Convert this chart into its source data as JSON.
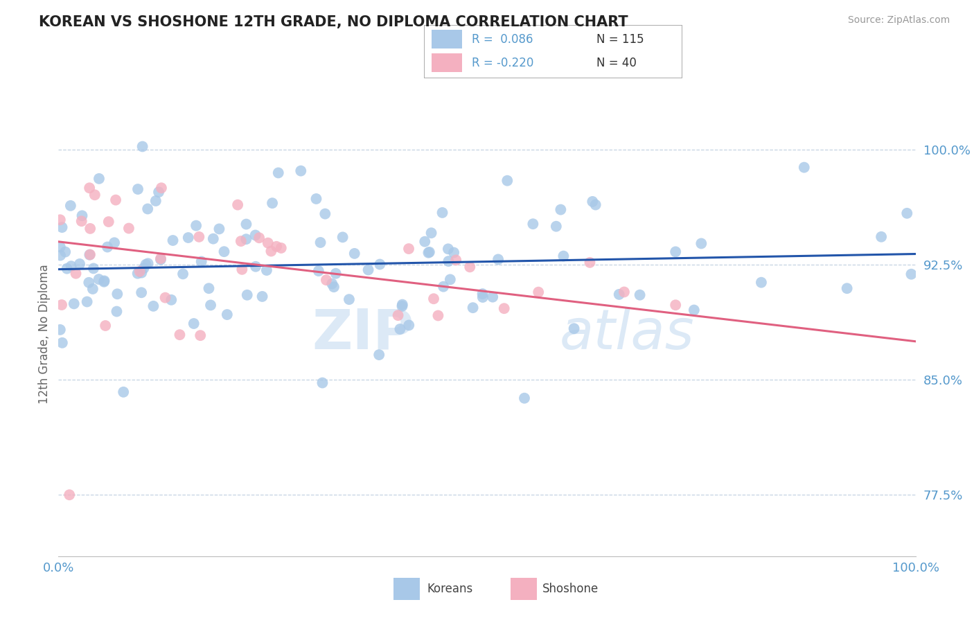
{
  "title": "KOREAN VS SHOSHONE 12TH GRADE, NO DIPLOMA CORRELATION CHART",
  "source_text": "Source: ZipAtlas.com",
  "ylabel": "12th Grade, No Diploma",
  "r_korean": 0.086,
  "r_shoshone": -0.22,
  "n_korean": 115,
  "n_shoshone": 40,
  "xlim": [
    0.0,
    1.0
  ],
  "ylim": [
    0.735,
    1.025
  ],
  "yticks": [
    0.775,
    0.85,
    0.925,
    1.0
  ],
  "ytick_labels": [
    "77.5%",
    "85.0%",
    "92.5%",
    "100.0%"
  ],
  "xticks": [
    0.0,
    1.0
  ],
  "xtick_labels": [
    "0.0%",
    "100.0%"
  ],
  "korean_color": "#a8c8e8",
  "shoshone_color": "#f4b0c0",
  "korean_line_color": "#2255aa",
  "shoshone_line_color": "#e06080",
  "tick_label_color": "#5599cc",
  "title_color": "#222222",
  "background_color": "#ffffff",
  "watermark_color": "#ddeeff",
  "grid_color": "#bbccdd",
  "kor_line_y0": 0.922,
  "kor_line_y1": 0.932,
  "sho_line_y0": 0.94,
  "sho_line_y1": 0.875
}
